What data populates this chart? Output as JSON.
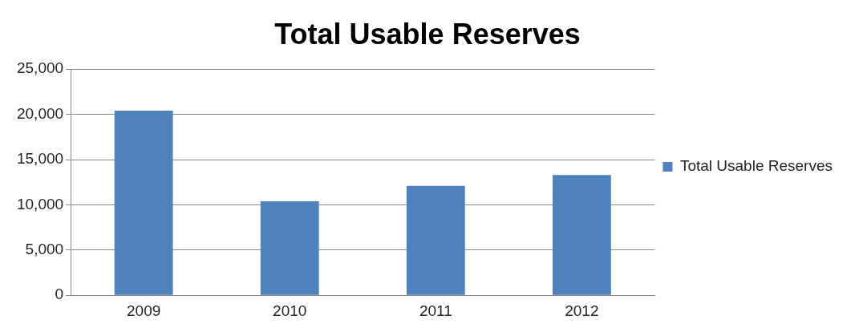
{
  "chart_data": {
    "type": "bar",
    "title": "Total Usable Reserves",
    "categories": [
      "2009",
      "2010",
      "2011",
      "2012"
    ],
    "series": [
      {
        "name": "Total Usable Reserves",
        "color": "#4f81bd",
        "values": [
          20400,
          10400,
          12100,
          13300
        ]
      }
    ],
    "ylim": [
      0,
      25000
    ],
    "yticks": [
      {
        "value": 0,
        "label": "0"
      },
      {
        "value": 5000,
        "label": "5,000"
      },
      {
        "value": 10000,
        "label": "10,000"
      },
      {
        "value": 15000,
        "label": "15,000"
      },
      {
        "value": 20000,
        "label": "20,000"
      },
      {
        "value": 25000,
        "label": "25,000"
      }
    ],
    "grid": "y",
    "legend": "right"
  }
}
